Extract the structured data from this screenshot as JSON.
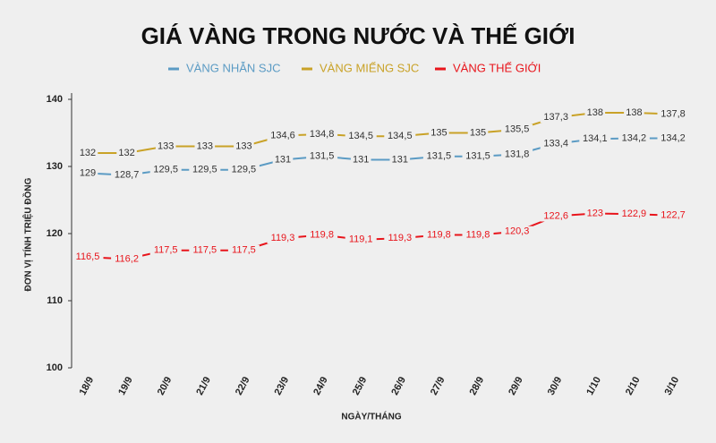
{
  "chart_data": {
    "type": "line",
    "title": "GIÁ VÀNG TRONG NƯỚC VÀ THẾ GIỚI",
    "x_label": "NGÀY/THÁNG",
    "y_label": "ĐƠN VỊ TÍNH TRIỆU ĐỒNG",
    "categories": [
      "18/9",
      "19/9",
      "20/9",
      "21/9",
      "22/9",
      "23/9",
      "24/9",
      "25/9",
      "26/9",
      "27/9",
      "28/9",
      "29/9",
      "30/9",
      "1/10",
      "2/10",
      "3/10"
    ],
    "series": [
      {
        "name": "VÀNG NHẪN SJC",
        "color": "#5b9bc4",
        "values": [
          129,
          128.7,
          129.5,
          129.5,
          129.5,
          131,
          131.5,
          131,
          131,
          131.5,
          131.5,
          131.8,
          133.4,
          134.1,
          134.2,
          134.2
        ],
        "value_labels": [
          "129",
          "128,7",
          "129,5",
          "129,5",
          "129,5",
          "131",
          "131,5",
          "131",
          "131",
          "131,5",
          "131,5",
          "131,8",
          "133,4",
          "134,1",
          "134,2",
          "134,2"
        ]
      },
      {
        "name": "VÀNG MIẾNG SJC",
        "color": "#c9a227",
        "values": [
          132,
          132,
          133,
          133,
          133,
          134.6,
          134.8,
          134.5,
          134.5,
          135,
          135,
          135.5,
          137.3,
          138,
          138,
          137.8
        ],
        "value_labels": [
          "132",
          "132",
          "133",
          "133",
          "133",
          "134,6",
          "134,8",
          "134,5",
          "134,5",
          "135",
          "135",
          "135,5",
          "137,3",
          "138",
          "138",
          "137,8"
        ]
      },
      {
        "name": "VÀNG THẾ GIỚI",
        "color": "#e8141b",
        "values": [
          116.5,
          116.2,
          117.5,
          117.5,
          117.5,
          119.3,
          119.8,
          119.1,
          119.3,
          119.8,
          119.8,
          120.3,
          122.6,
          123,
          122.9,
          122.7
        ],
        "value_labels": [
          "116,5",
          "116,2",
          "117,5",
          "117,5",
          "117,5",
          "119,3",
          "119,8",
          "119,1",
          "119,3",
          "119,8",
          "119,8",
          "120,3",
          "122,6",
          "123",
          "122,9",
          "122,7"
        ]
      }
    ],
    "ylim": [
      100,
      140
    ],
    "yticks": [
      100,
      110,
      120,
      130,
      140
    ]
  }
}
